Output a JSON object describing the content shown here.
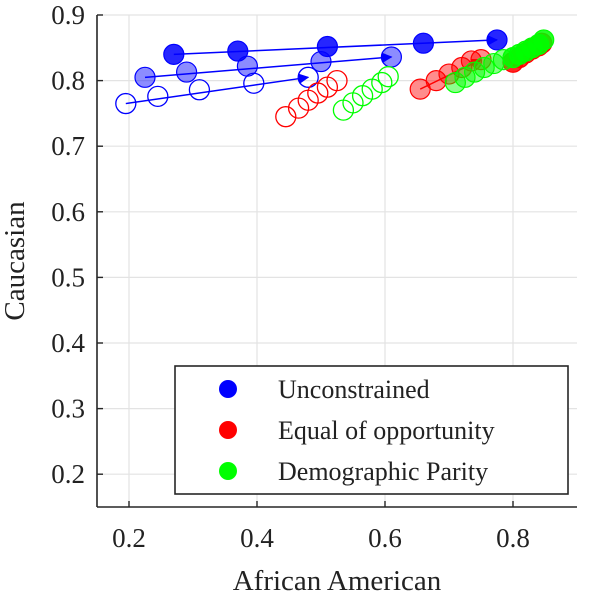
{
  "chart_data": {
    "type": "scatter",
    "xlabel": "African American",
    "ylabel": "Caucasian",
    "xlim": [
      0.15,
      0.9
    ],
    "ylim": [
      0.15,
      0.9
    ],
    "x_ticks": [
      0.2,
      0.4,
      0.6,
      0.8
    ],
    "y_ticks": [
      0.2,
      0.3,
      0.4,
      0.5,
      0.6,
      0.7,
      0.8,
      0.9
    ],
    "grid": true,
    "legend_position": "bottom-right",
    "colors": {
      "Unconstrained": "#0000ff",
      "Equal of opportunity": "#ff0000",
      "Demographic Parity": "#00ff00"
    },
    "series": [
      {
        "name": "Unconstrained",
        "style": "solid",
        "x": [
          0.27,
          0.37,
          0.51,
          0.66,
          0.775
        ],
        "y": [
          0.84,
          0.845,
          0.852,
          0.857,
          0.862
        ]
      },
      {
        "name": "Unconstrained",
        "style": "semi",
        "x": [
          0.225,
          0.29,
          0.385,
          0.5,
          0.61
        ],
        "y": [
          0.805,
          0.813,
          0.822,
          0.829,
          0.836
        ]
      },
      {
        "name": "Unconstrained",
        "style": "hollow",
        "x": [
          0.195,
          0.245,
          0.31,
          0.395,
          0.48
        ],
        "y": [
          0.765,
          0.776,
          0.786,
          0.796,
          0.805
        ]
      },
      {
        "name": "Equal of opportunity",
        "style": "solid",
        "x": [
          0.8,
          0.81,
          0.82,
          0.83,
          0.84,
          0.845
        ],
        "y": [
          0.828,
          0.835,
          0.842,
          0.848,
          0.853,
          0.857
        ]
      },
      {
        "name": "Equal of opportunity",
        "style": "semi",
        "x": [
          0.655,
          0.68,
          0.7,
          0.72,
          0.735,
          0.75
        ],
        "y": [
          0.787,
          0.8,
          0.81,
          0.82,
          0.83,
          0.832
        ]
      },
      {
        "name": "Equal of opportunity",
        "style": "hollow",
        "x": [
          0.445,
          0.465,
          0.48,
          0.495,
          0.51,
          0.525
        ],
        "y": [
          0.745,
          0.758,
          0.77,
          0.781,
          0.79,
          0.8
        ]
      },
      {
        "name": "Demographic Parity",
        "style": "solid",
        "x": [
          0.8,
          0.81,
          0.82,
          0.83,
          0.84,
          0.848
        ],
        "y": [
          0.835,
          0.84,
          0.845,
          0.85,
          0.855,
          0.862
        ]
      },
      {
        "name": "Demographic Parity",
        "style": "semi",
        "x": [
          0.71,
          0.725,
          0.74,
          0.755,
          0.77,
          0.785
        ],
        "y": [
          0.797,
          0.805,
          0.813,
          0.82,
          0.826,
          0.832
        ]
      },
      {
        "name": "Demographic Parity",
        "style": "hollow",
        "x": [
          0.535,
          0.55,
          0.565,
          0.58,
          0.595,
          0.605
        ],
        "y": [
          0.755,
          0.766,
          0.777,
          0.787,
          0.797,
          0.806
        ]
      }
    ],
    "arrows": [
      {
        "color": "#0000ff",
        "from": [
          0.27,
          0.84
        ],
        "to": [
          0.775,
          0.862
        ]
      },
      {
        "color": "#0000ff",
        "from": [
          0.225,
          0.805
        ],
        "to": [
          0.61,
          0.836
        ]
      },
      {
        "color": "#0000ff",
        "from": [
          0.195,
          0.765
        ],
        "to": [
          0.48,
          0.805
        ]
      },
      {
        "color": "#ff0000",
        "from": [
          0.8,
          0.828
        ],
        "to": [
          0.845,
          0.857
        ]
      },
      {
        "color": "#ff0000",
        "from": [
          0.655,
          0.787
        ],
        "to": [
          0.75,
          0.832
        ]
      },
      {
        "color": "#00ff00",
        "from": [
          0.8,
          0.835
        ],
        "to": [
          0.848,
          0.862
        ]
      }
    ],
    "legend": [
      {
        "label": "Unconstrained",
        "color": "#0000ff"
      },
      {
        "label": "Equal of opportunity",
        "color": "#ff0000"
      },
      {
        "label": "Demographic Parity",
        "color": "#00ff00"
      }
    ]
  }
}
